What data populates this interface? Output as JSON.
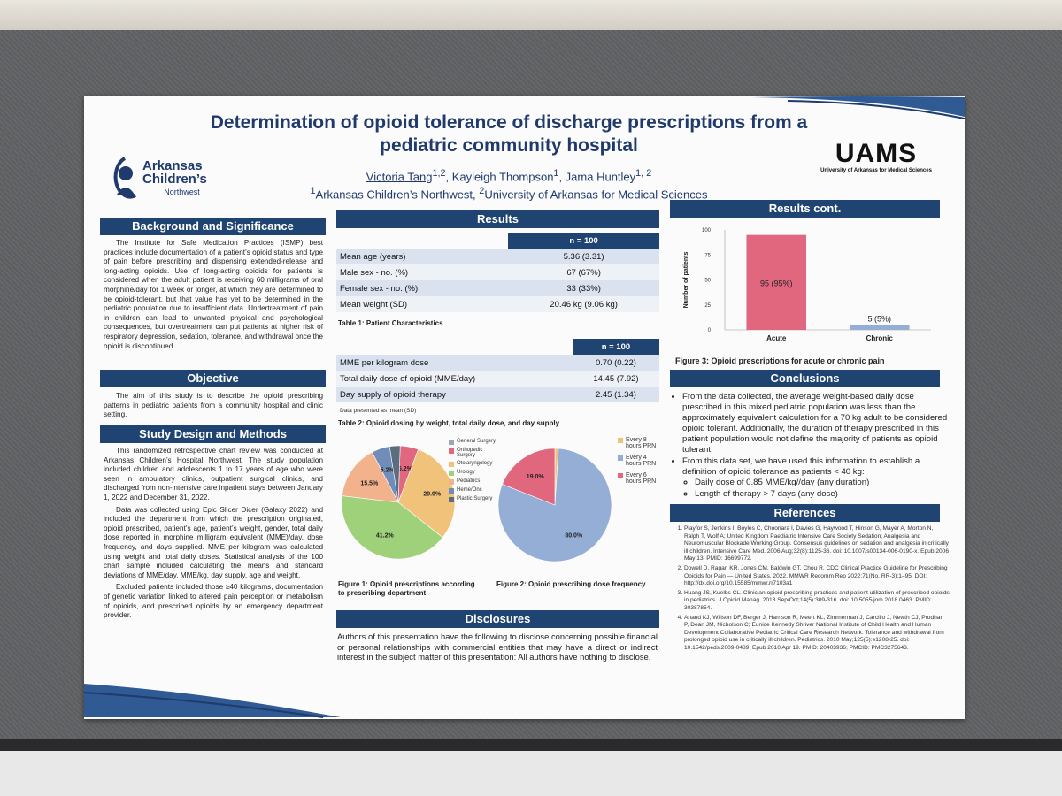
{
  "poster": {
    "title": "Determination of opioid tolerance of discharge prescriptions from a pediatric community hospital",
    "authors": {
      "a1": "Victoria Tang",
      "a1_sup": "1,2",
      "a2": ", Kayleigh Thompson",
      "a2_sup": "1",
      "a3": ", Jama Huntley",
      "a3_sup": "1, 2",
      "aff1_sup": "1",
      "aff1": "Arkansas Children’s Northwest, ",
      "aff2_sup": "2",
      "aff2": "University of Arkansas for Medical Sciences"
    },
    "logo_left": {
      "line1": "Arkansas",
      "line2": "Children’s",
      "line3": "Northwest"
    },
    "logo_right": {
      "main": "UAMS",
      "sub": "University of Arkansas for Medical Sciences"
    },
    "background": {
      "header": "Background and Significance",
      "text": "The Institute for Safe Medication Practices (ISMP) best practices include documentation of a patient’s opioid status and type of pain before prescribing and dispensing extended-release and long-acting opioids. Use of long-acting opioids for patients is considered when the adult patient is receiving 60 milligrams of oral morphine/day for 1 week or longer, at which they are determined to be opioid-tolerant, but that value has yet to be determined in the pediatric population due to insufficient data. Undertreatment of pain in children can lead to unwanted physical and psychological consequences, but overtreatment can put patients at higher risk of respiratory depression, sedation, tolerance, and withdrawal once the opioid is discontinued."
    },
    "objective": {
      "header": "Objective",
      "text": "The aim of this study is to describe the opioid prescribing patterns in pediatric patients from a community hospital and clinic setting."
    },
    "methods": {
      "header": "Study Design and Methods",
      "p1": "This randomized retrospective chart review was conducted at Arkansas Children’s Hospital Northwest. The study population included children and adolescents 1 to 17 years of age who were seen in ambulatory clinics, outpatient surgical clinics, and discharged from non-intensive care inpatient stays between January 1, 2022 and December 31, 2022.",
      "p2": "Data was collected using Epic Slicer Dicer (Galaxy 2022) and included the department from which the prescription originated, opioid prescribed, patient’s age, patient’s weight, gender, total daily dose reported in morphine milligram equivalent (MME)/day, dose frequency, and days supplied. MME per kilogram was calculated using weight and total daily doses. Statistical analysis of the 100 chart sample included calculating the means and standard deviations of MME/day, MME/kg, day supply, age and weight.",
      "p3": "Excluded patients included those ≥40 kilograms, documentation of genetic variation linked to altered pain perception or metabolism of opioids, and prescribed opioids by an emergency department provider."
    },
    "results": {
      "header": "Results",
      "table1": {
        "col": "n = 100",
        "rows": [
          {
            "label": "Mean age (years)",
            "value": "5.36 (3.31)"
          },
          {
            "label": "Male sex - no. (%)",
            "value": "67 (67%)"
          },
          {
            "label": "Female sex - no. (%)",
            "value": "33 (33%)"
          },
          {
            "label": "Mean weight (SD)",
            "value": "20.46 kg (9.06 kg)"
          }
        ],
        "caption": "Table 1: Patient Characteristics"
      },
      "table2": {
        "col": "n = 100",
        "rows": [
          {
            "label": "MME per kilogram dose",
            "value": "0.70 (0.22)"
          },
          {
            "label": "Total daily dose of opioid (MME/day)",
            "value": "14.45 (7.92)"
          },
          {
            "label": "Day supply of opioid therapy",
            "value": "2.45 (1.34)"
          }
        ],
        "note": "Data presented as mean (SD)",
        "caption": "Table 2: Opioid dosing by weight, total daily dose, and day supply"
      },
      "fig1_caption": "Figure 1: Opioid prescriptions according to prescribing department",
      "fig2_caption": "Figure 2: Opioid prescribing dose frequency"
    },
    "results_cont": {
      "header": "Results cont.",
      "fig3_caption": "Figure 3: Opioid prescriptions for acute or chronic pain"
    },
    "conclusions": {
      "header": "Conclusions",
      "b1": "From the data collected, the average weight-based daily dose prescribed in this mixed pediatric population was less than the approximately equivalent calculation for a 70 kg adult to be considered opioid tolerant. Additionally, the duration of therapy prescribed in this patient population would not define the majority of patients as opioid tolerant.",
      "b2": "From this data set, we have used this information to establish a definition of opioid tolerance as patients < 40 kg:",
      "s1": "Daily dose of 0.85 MME/kg//day (any duration)",
      "s2": "Length of therapy > 7 days (any dose)"
    },
    "disclosures": {
      "header": "Disclosures",
      "text": "Authors of this presentation have the following to disclose concerning possible financial or personal relationships with commercial entities that may have a direct or indirect interest in the subject matter of this presentation: All authors have nothing to disclose."
    },
    "references": {
      "header": "References",
      "items": [
        "Playfor S, Jenkins I, Boyles C, Choonara I, Davies G, Haywood T, Hinson G, Mayer A, Morton N, Ralph T, Wolf A; United Kingdom Paediatric Intensive Care Society Sedation; Analgesia and Neuromuscular Blockade Working Group. Consensus guidelines on sedation and analgesia in critically ill children. Intensive Care Med. 2006 Aug;32(8):1125-36. doi: 10.1007/s00134-006-0190-x. Epub 2006 May 13. PMID: 16699772.",
        "Dowell D, Ragan KR, Jones CM, Baldwin GT, Chou R. CDC Clinical Practice Guideline for Prescribing Opioids for Pain — United States, 2022. MMWR Recomm Rep 2022;71(No. RR-3):1–95. DOI: http://dx.doi.org/10.15585/mmwr.rr7103a1",
        "Huang JS, Kuelbs CL. Clinician opioid prescribing practices and patient utilization of prescribed opioids in pediatrics. J Opioid Manag. 2018 Sep/Oct;14(5):309-316. doi: 10.5055/jom.2018.0463. PMID: 30387854.",
        "Anand KJ, Willson DF, Berger J, Harrison R, Meert KL, Zimmerman J, Carcillo J, Newth CJ, Prodhan P, Dean JM, Nicholson C; Eunice Kennedy Shriver National Institute of Child Health and Human Development Collaborative Pediatric Critical Care Research Network. Tolerance and withdrawal from prolonged opioid use in critically ill children. Pediatrics. 2010 May;125(5):e1208-25. doi: 10.1542/peds.2009-0489. Epub 2010 Apr 19. PMID: 20403936; PMCID: PMC3275643."
      ]
    }
  },
  "chart_data": [
    {
      "type": "pie",
      "categories": [
        "General Surgery",
        "Orthopedic Surgery",
        "Otolaryngology",
        "Urology",
        "Pediatrics",
        "Heme/Onc",
        "Plastic Surgery"
      ],
      "values": [
        0,
        5.2,
        29.9,
        41.2,
        15.5,
        5.2,
        3.0
      ],
      "data_labels": [
        "",
        "5.2%",
        "29.9%",
        "41.2%",
        "15.5%",
        "5.2%",
        ""
      ],
      "colors": [
        "#9aa6b8",
        "#e0677e",
        "#f0c27a",
        "#9fd07a",
        "#f2b28c",
        "#6f8db8",
        "#5b6e80"
      ]
    },
    {
      "type": "pie",
      "categories": [
        "Every 8 hours PRN",
        "Every 4 hours PRN",
        "Every 6 hours PRN"
      ],
      "values": [
        1,
        80.0,
        19.0
      ],
      "data_labels": [
        "",
        "80.0%",
        "19.0%"
      ],
      "colors": [
        "#f0c27a",
        "#94aed6",
        "#e0677e"
      ]
    },
    {
      "type": "bar",
      "categories": [
        "Acute",
        "Chronic"
      ],
      "values": [
        95,
        5
      ],
      "data_labels": [
        "95 (95%)",
        "5 (5%)"
      ],
      "ylabel": "Number of patients",
      "ylim": [
        0,
        100
      ],
      "yticks": [
        "0",
        "25",
        "50",
        "75",
        "100"
      ],
      "colors": [
        "#e0677e",
        "#94aed6"
      ]
    }
  ]
}
